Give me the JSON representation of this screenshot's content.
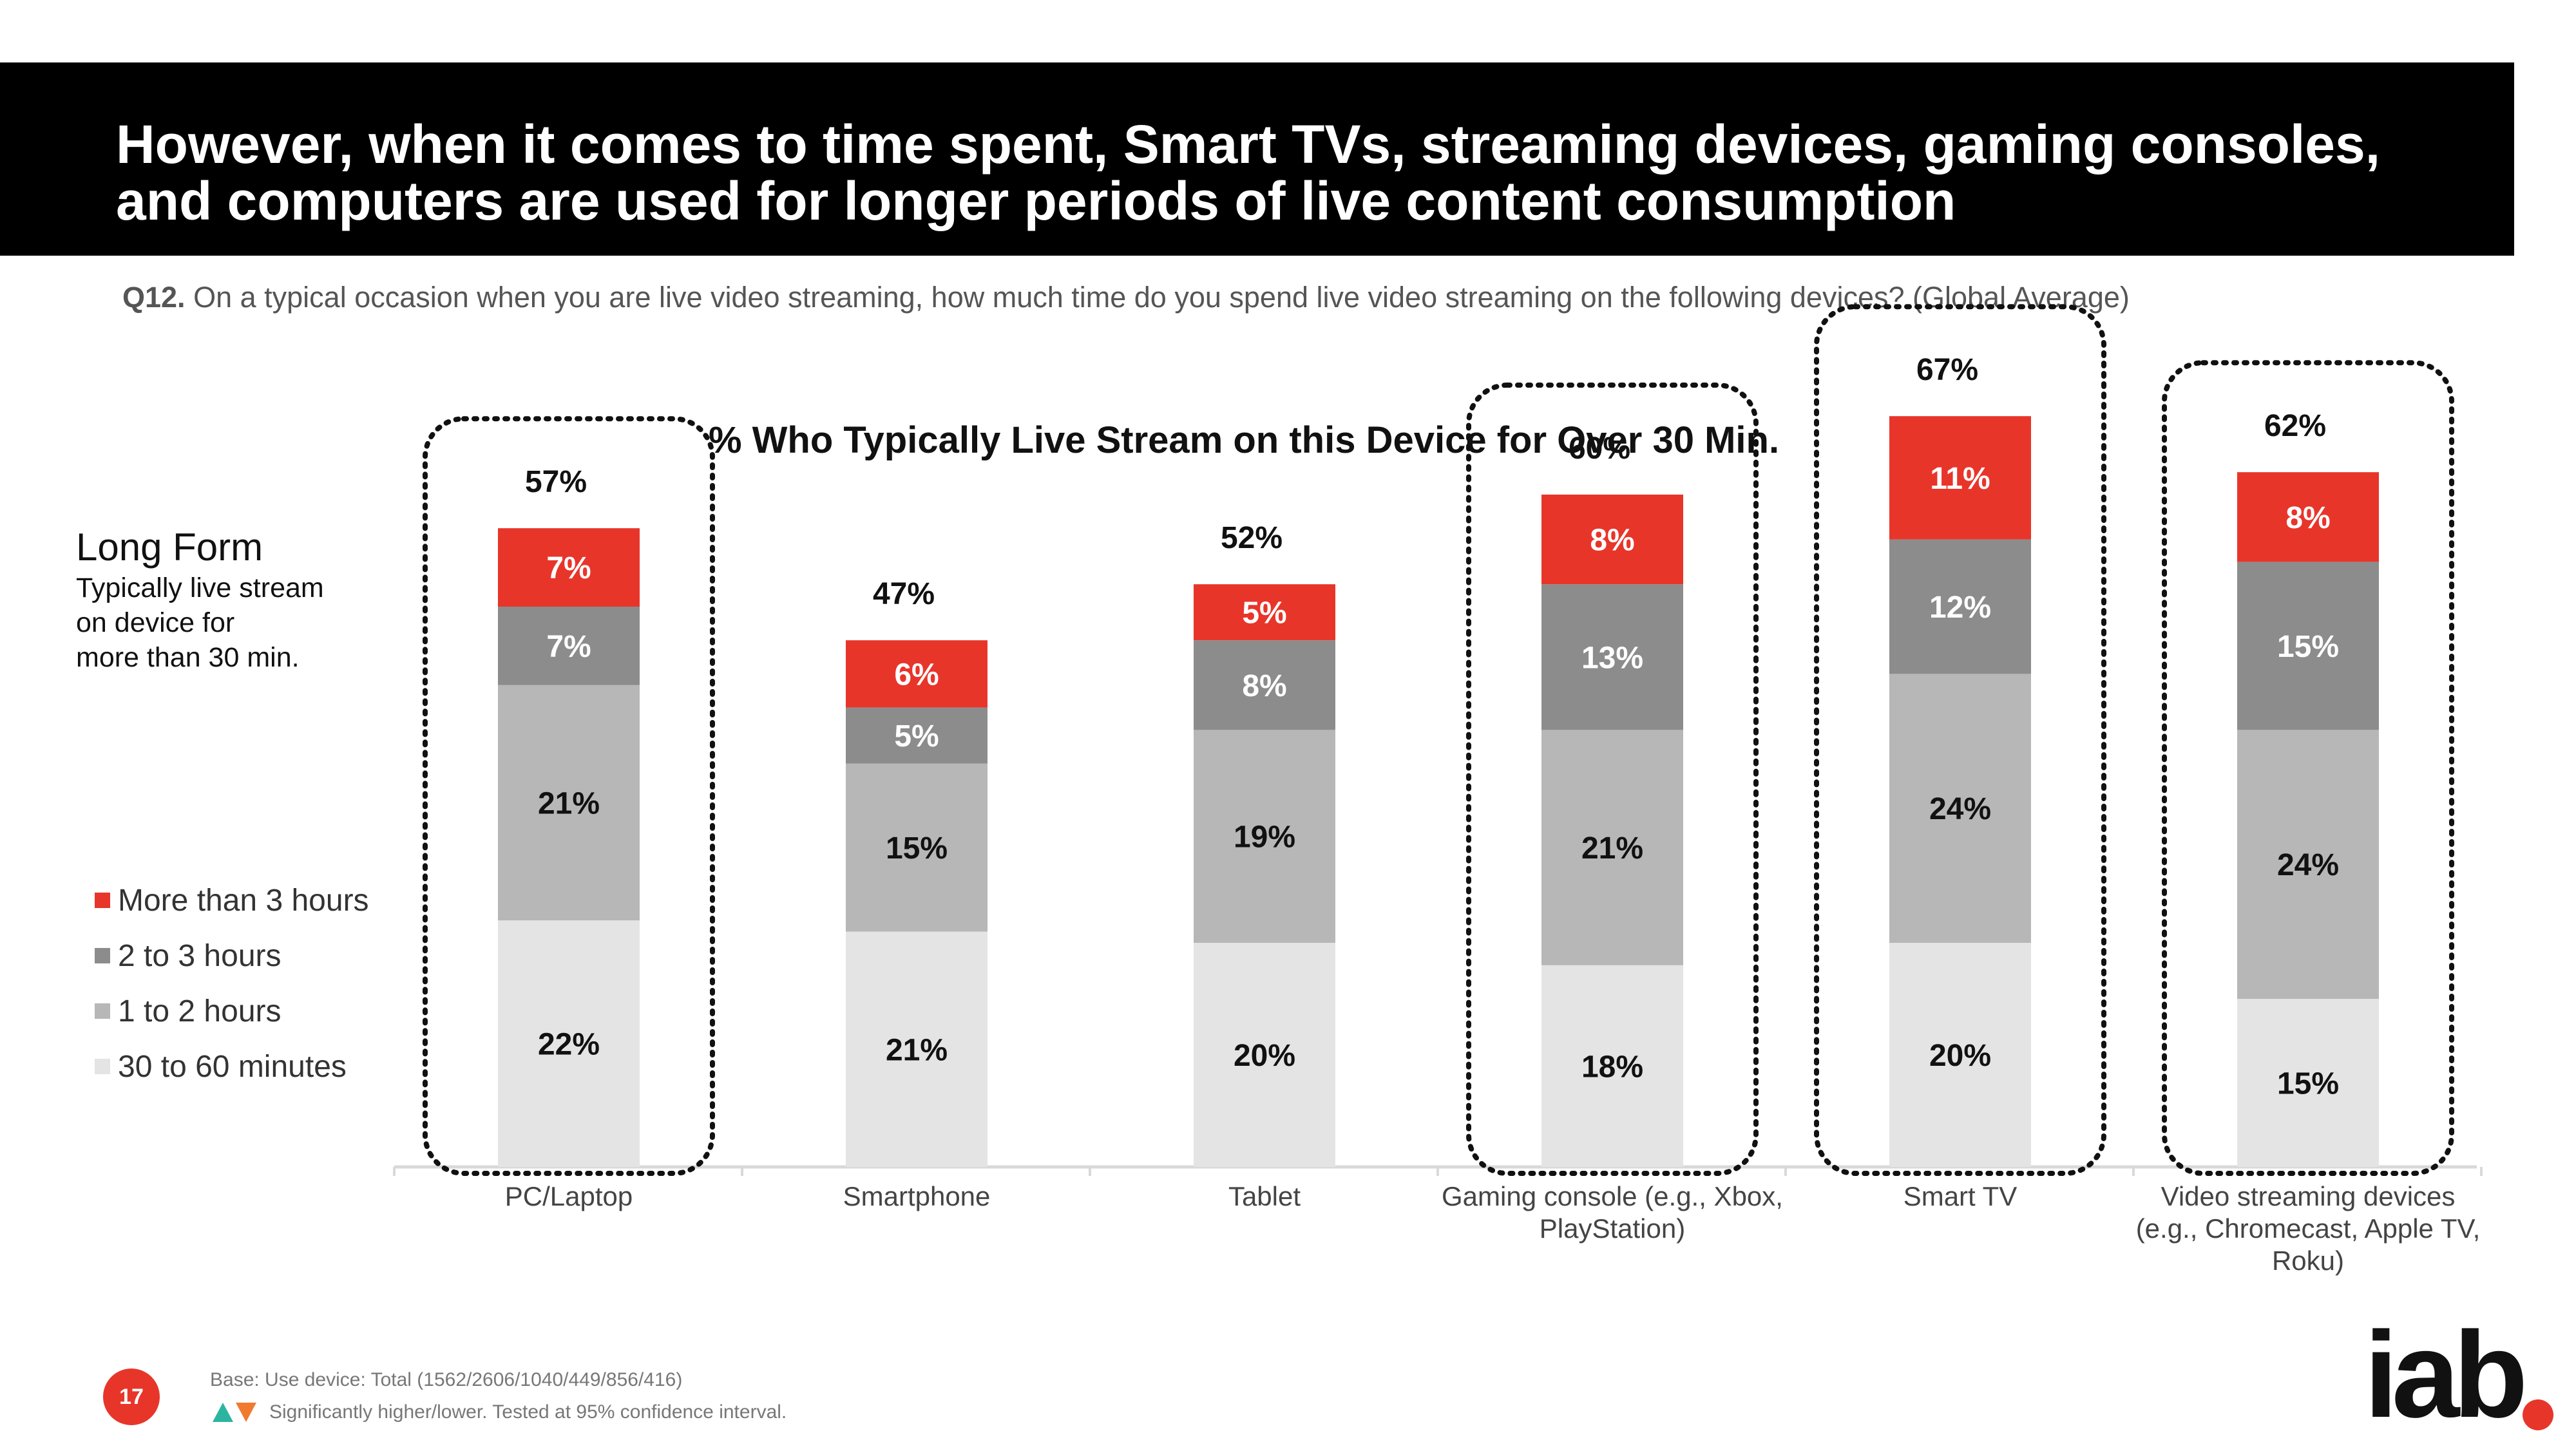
{
  "header": {
    "title": "However, when it comes to time spent, Smart TVs, streaming devices, gaming consoles, and computers are used for longer periods of live content consumption"
  },
  "question": {
    "label": "Q12.",
    "text": "On a typical occasion when you are live video streaming, how much time do you spend live video streaming on the following devices? (Global Average)"
  },
  "long_form": {
    "title": "Long Form",
    "subtitle_lines": [
      "Typically live stream",
      "on device for",
      "more than 30 min."
    ]
  },
  "colors": {
    "more_than_3h": "#e8352a",
    "two_to_three": "#8c8c8c",
    "one_to_two": "#b7b7b7",
    "thirty_to_sixty": "#e4e4e4",
    "outline": "#111111"
  },
  "chart_data": {
    "type": "bar",
    "stacked": true,
    "title": "% Who Typically Live Stream on this Device for Over 30 Min.",
    "categories": [
      [
        "PC/Laptop"
      ],
      [
        "Smartphone"
      ],
      [
        "Tablet"
      ],
      [
        "Gaming console (e.g., Xbox,",
        "PlayStation)"
      ],
      [
        "Smart TV"
      ],
      [
        "Video streaming devices",
        "(e.g., Chromecast, Apple TV,",
        "Roku)"
      ]
    ],
    "series": [
      {
        "name": "30 to 60 minutes",
        "values": [
          22,
          21,
          20,
          18,
          20,
          15
        ],
        "labels": [
          "22%",
          "21%",
          "20%",
          "18%",
          "20%",
          "15%"
        ]
      },
      {
        "name": "1 to 2 hours",
        "values": [
          21,
          15,
          19,
          21,
          24,
          24
        ],
        "labels": [
          "21%",
          "15%",
          "19%",
          "21%",
          "24%",
          "24%"
        ]
      },
      {
        "name": "2 to 3 hours",
        "values": [
          7,
          5,
          8,
          13,
          12,
          15
        ],
        "labels": [
          "7%",
          "5%",
          "8%",
          "13%",
          "12%",
          "15%"
        ]
      },
      {
        "name": "More than 3 hours",
        "values": [
          7,
          6,
          5,
          8,
          11,
          8
        ],
        "labels": [
          "7%",
          "6%",
          "5%",
          "8%",
          "11%",
          "8%"
        ]
      }
    ],
    "totals": [
      "57%",
      "47%",
      "52%",
      "60%",
      "67%",
      "62%"
    ],
    "highlighted": [
      true,
      false,
      false,
      true,
      true,
      true
    ],
    "legend_order": [
      "More than 3 hours",
      "2 to 3 hours",
      "1 to 2 hours",
      "30 to 60 minutes"
    ],
    "legend_position": "left",
    "grid": false
  },
  "footer": {
    "base": "Base: Use device: Total (1562/2606/1040/449/856/416)",
    "significance": "Significantly higher/lower. Tested at 95% confidence interval.",
    "page_number": "17",
    "logo_text": "iab"
  }
}
